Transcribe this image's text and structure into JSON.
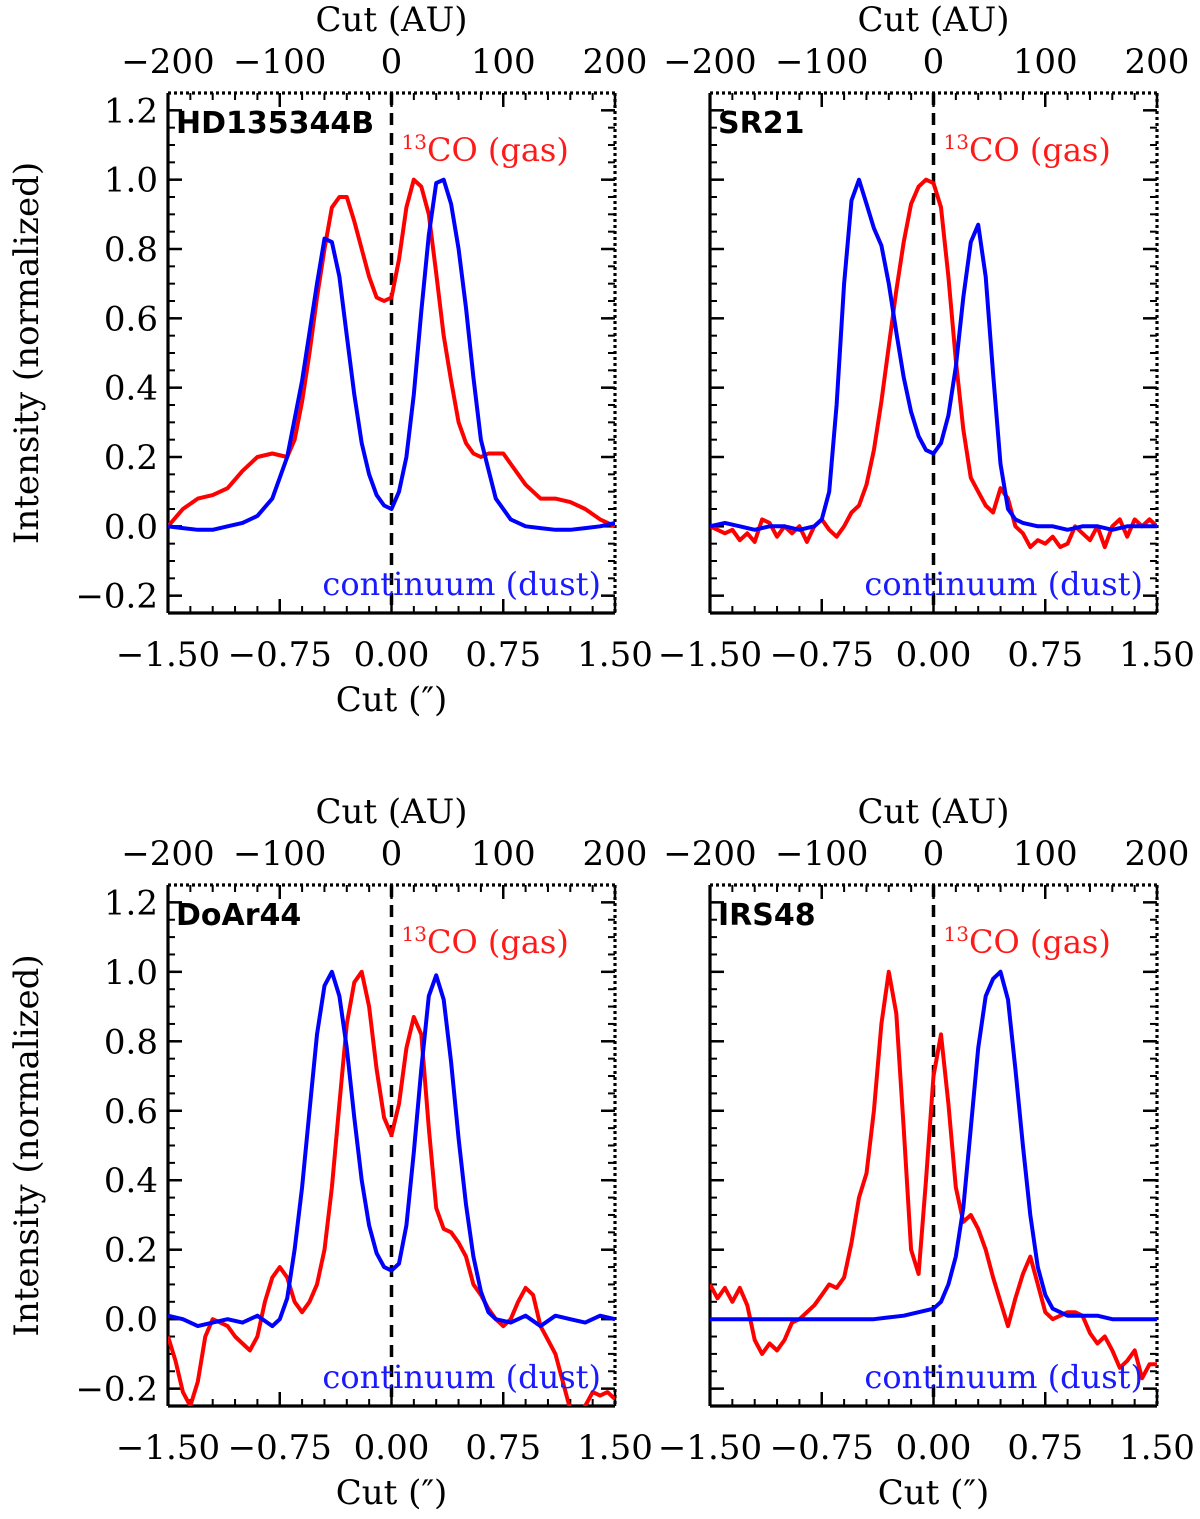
{
  "chart_data": [
    {
      "type": "line",
      "panel_label": "HD135344B",
      "xlabel": "Cut ('')",
      "ylabel": "Intensity (normalized)",
      "top_xlabel": "Cut (AU)",
      "xlim": [
        -1.5,
        1.5
      ],
      "ylim": [
        -0.25,
        1.25
      ],
      "top_xlim": [
        -200,
        200
      ],
      "xticks": [
        "-1.50",
        "-0.75",
        "0.00",
        "0.75",
        "1.50"
      ],
      "yticks": [
        "-0.2",
        "0.0",
        "0.2",
        "0.4",
        "0.6",
        "0.8",
        "1.0",
        "1.2"
      ],
      "top_xticks": [
        "-200",
        "-100",
        "0",
        "100",
        "200"
      ],
      "vline_x": 0,
      "gas_label": {
        "sup": "13",
        "text": "CO (gas)"
      },
      "dust_label": "continuum (dust)",
      "series": [
        {
          "name": "13CO (gas)",
          "color": "#ff0000",
          "x": [
            -1.5,
            -1.4,
            -1.3,
            -1.2,
            -1.1,
            -1.0,
            -0.9,
            -0.8,
            -0.7,
            -0.65,
            -0.6,
            -0.55,
            -0.5,
            -0.45,
            -0.4,
            -0.35,
            -0.3,
            -0.25,
            -0.2,
            -0.15,
            -0.1,
            -0.05,
            0.0,
            0.05,
            0.1,
            0.15,
            0.2,
            0.25,
            0.3,
            0.35,
            0.4,
            0.45,
            0.5,
            0.55,
            0.6,
            0.65,
            0.7,
            0.75,
            0.8,
            0.9,
            1.0,
            1.1,
            1.2,
            1.3,
            1.4,
            1.5
          ],
          "values": [
            0.0,
            0.05,
            0.08,
            0.09,
            0.11,
            0.16,
            0.2,
            0.21,
            0.2,
            0.25,
            0.36,
            0.5,
            0.66,
            0.8,
            0.92,
            0.95,
            0.95,
            0.88,
            0.8,
            0.72,
            0.66,
            0.65,
            0.66,
            0.77,
            0.92,
            1.0,
            0.98,
            0.9,
            0.73,
            0.55,
            0.42,
            0.3,
            0.24,
            0.21,
            0.2,
            0.21,
            0.21,
            0.21,
            0.18,
            0.12,
            0.08,
            0.08,
            0.07,
            0.05,
            0.02,
            0.0
          ]
        },
        {
          "name": "continuum (dust)",
          "color": "#0000ff",
          "x": [
            -1.5,
            -1.4,
            -1.3,
            -1.2,
            -1.1,
            -1.0,
            -0.9,
            -0.8,
            -0.7,
            -0.6,
            -0.5,
            -0.45,
            -0.4,
            -0.35,
            -0.3,
            -0.25,
            -0.2,
            -0.15,
            -0.1,
            -0.05,
            0.0,
            0.05,
            0.1,
            0.15,
            0.2,
            0.25,
            0.3,
            0.35,
            0.4,
            0.45,
            0.5,
            0.55,
            0.6,
            0.7,
            0.8,
            0.9,
            1.0,
            1.1,
            1.2,
            1.3,
            1.4,
            1.5
          ],
          "values": [
            0.0,
            -0.005,
            -0.01,
            -0.01,
            0.0,
            0.01,
            0.03,
            0.08,
            0.2,
            0.42,
            0.7,
            0.83,
            0.82,
            0.72,
            0.55,
            0.38,
            0.24,
            0.15,
            0.09,
            0.06,
            0.05,
            0.1,
            0.2,
            0.38,
            0.62,
            0.84,
            0.99,
            1.0,
            0.93,
            0.8,
            0.63,
            0.43,
            0.25,
            0.08,
            0.02,
            0.0,
            -0.005,
            -0.01,
            -0.01,
            -0.005,
            0.0,
            0.01
          ]
        }
      ]
    },
    {
      "type": "line",
      "panel_label": "SR21",
      "xlabel": "",
      "ylabel": "",
      "top_xlabel": "Cut (AU)",
      "xlim": [
        -1.5,
        1.5
      ],
      "ylim": [
        -0.25,
        1.25
      ],
      "top_xlim": [
        -200,
        200
      ],
      "xticks": [
        "-1.50",
        "-0.75",
        "0.00",
        "0.75",
        "1.50"
      ],
      "yticks": [],
      "top_xticks": [
        "-200",
        "-100",
        "0",
        "100",
        "200"
      ],
      "vline_x": 0,
      "gas_label": {
        "sup": "13",
        "text": "CO (gas)"
      },
      "dust_label": "continuum (dust)",
      "series": [
        {
          "name": "13CO (gas)",
          "color": "#ff0000",
          "x": [
            -1.5,
            -1.4,
            -1.35,
            -1.3,
            -1.25,
            -1.2,
            -1.15,
            -1.1,
            -1.05,
            -1.0,
            -0.95,
            -0.9,
            -0.85,
            -0.8,
            -0.75,
            -0.7,
            -0.65,
            -0.6,
            -0.55,
            -0.5,
            -0.45,
            -0.4,
            -0.35,
            -0.3,
            -0.25,
            -0.2,
            -0.15,
            -0.1,
            -0.05,
            0.0,
            0.05,
            0.1,
            0.15,
            0.2,
            0.25,
            0.3,
            0.35,
            0.4,
            0.45,
            0.5,
            0.55,
            0.6,
            0.65,
            0.7,
            0.75,
            0.8,
            0.85,
            0.9,
            0.95,
            1.0,
            1.05,
            1.1,
            1.15,
            1.2,
            1.25,
            1.3,
            1.35,
            1.4,
            1.45,
            1.5
          ],
          "values": [
            0.0,
            -0.02,
            -0.01,
            -0.04,
            -0.02,
            -0.045,
            0.02,
            0.01,
            -0.03,
            0.0,
            -0.02,
            0.0,
            -0.045,
            0.0,
            0.02,
            -0.01,
            -0.03,
            0.0,
            0.04,
            0.06,
            0.12,
            0.22,
            0.36,
            0.52,
            0.68,
            0.82,
            0.93,
            0.98,
            1.0,
            0.99,
            0.92,
            0.72,
            0.48,
            0.28,
            0.14,
            0.1,
            0.06,
            0.04,
            0.11,
            0.08,
            0.0,
            -0.02,
            -0.06,
            -0.04,
            -0.05,
            -0.03,
            -0.06,
            -0.05,
            0.0,
            -0.02,
            -0.04,
            0.0,
            -0.06,
            0.0,
            0.02,
            -0.03,
            0.02,
            0.0,
            0.02,
            0.0
          ]
        },
        {
          "name": "continuum (dust)",
          "color": "#0000ff",
          "x": [
            -1.5,
            -1.4,
            -1.3,
            -1.2,
            -1.1,
            -1.0,
            -0.9,
            -0.8,
            -0.75,
            -0.7,
            -0.65,
            -0.6,
            -0.55,
            -0.5,
            -0.45,
            -0.4,
            -0.35,
            -0.3,
            -0.25,
            -0.2,
            -0.15,
            -0.1,
            -0.05,
            0.0,
            0.05,
            0.1,
            0.15,
            0.2,
            0.25,
            0.3,
            0.35,
            0.4,
            0.45,
            0.5,
            0.55,
            0.6,
            0.7,
            0.8,
            0.9,
            1.0,
            1.1,
            1.2,
            1.3,
            1.4,
            1.5
          ],
          "values": [
            0.0,
            0.01,
            0.0,
            -0.01,
            0.0,
            0.0,
            -0.01,
            0.0,
            0.02,
            0.1,
            0.35,
            0.7,
            0.94,
            1.0,
            0.93,
            0.86,
            0.81,
            0.7,
            0.56,
            0.43,
            0.33,
            0.26,
            0.22,
            0.21,
            0.24,
            0.32,
            0.46,
            0.66,
            0.82,
            0.87,
            0.72,
            0.44,
            0.18,
            0.05,
            0.02,
            0.01,
            0.0,
            0.0,
            -0.01,
            0.0,
            0.0,
            -0.01,
            0.0,
            0.0,
            0.0
          ]
        }
      ]
    },
    {
      "type": "line",
      "panel_label": "DoAr44",
      "xlabel": "Cut ('')",
      "ylabel": "Intensity (normalized)",
      "top_xlabel": "Cut (AU)",
      "xlim": [
        -1.5,
        1.5
      ],
      "ylim": [
        -0.25,
        1.25
      ],
      "top_xlim": [
        -200,
        200
      ],
      "xticks": [
        "-1.50",
        "-0.75",
        "0.00",
        "0.75",
        "1.50"
      ],
      "yticks": [
        "-0.2",
        "0.0",
        "0.2",
        "0.4",
        "0.6",
        "0.8",
        "1.0",
        "1.2"
      ],
      "top_xticks": [
        "-200",
        "-100",
        "0",
        "100",
        "200"
      ],
      "vline_x": 0,
      "gas_label": {
        "sup": "13",
        "text": "CO (gas)"
      },
      "dust_label": "continuum (dust)",
      "series": [
        {
          "name": "13CO (gas)",
          "color": "#ff0000",
          "x": [
            -1.5,
            -1.45,
            -1.4,
            -1.35,
            -1.3,
            -1.25,
            -1.2,
            -1.15,
            -1.1,
            -1.05,
            -1.0,
            -0.95,
            -0.9,
            -0.85,
            -0.8,
            -0.75,
            -0.7,
            -0.65,
            -0.6,
            -0.55,
            -0.5,
            -0.45,
            -0.4,
            -0.35,
            -0.3,
            -0.25,
            -0.2,
            -0.15,
            -0.1,
            -0.05,
            0.0,
            0.05,
            0.1,
            0.15,
            0.2,
            0.25,
            0.3,
            0.35,
            0.4,
            0.45,
            0.5,
            0.55,
            0.6,
            0.65,
            0.7,
            0.75,
            0.8,
            0.85,
            0.9,
            0.95,
            1.0,
            1.05,
            1.1,
            1.15,
            1.2,
            1.25,
            1.3,
            1.35,
            1.4,
            1.45,
            1.5
          ],
          "values": [
            -0.05,
            -0.12,
            -0.21,
            -0.25,
            -0.18,
            -0.05,
            0.0,
            -0.01,
            -0.02,
            -0.05,
            -0.07,
            -0.09,
            -0.05,
            0.05,
            0.12,
            0.15,
            0.12,
            0.05,
            0.02,
            0.05,
            0.1,
            0.2,
            0.38,
            0.62,
            0.85,
            0.97,
            1.0,
            0.9,
            0.72,
            0.58,
            0.53,
            0.62,
            0.78,
            0.87,
            0.82,
            0.55,
            0.32,
            0.26,
            0.25,
            0.22,
            0.18,
            0.1,
            0.07,
            0.03,
            0.0,
            -0.02,
            0.0,
            0.05,
            0.09,
            0.07,
            -0.02,
            -0.06,
            -0.1,
            -0.18,
            -0.26,
            -0.29,
            -0.25,
            -0.21,
            -0.22,
            -0.21,
            -0.23
          ]
        },
        {
          "name": "continuum (dust)",
          "color": "#0000ff",
          "x": [
            -1.5,
            -1.4,
            -1.3,
            -1.2,
            -1.1,
            -1.0,
            -0.9,
            -0.8,
            -0.75,
            -0.7,
            -0.65,
            -0.6,
            -0.55,
            -0.5,
            -0.45,
            -0.4,
            -0.35,
            -0.3,
            -0.25,
            -0.2,
            -0.15,
            -0.1,
            -0.05,
            0.0,
            0.05,
            0.1,
            0.15,
            0.2,
            0.25,
            0.3,
            0.35,
            0.4,
            0.45,
            0.5,
            0.55,
            0.6,
            0.65,
            0.7,
            0.8,
            0.9,
            1.0,
            1.1,
            1.2,
            1.3,
            1.4,
            1.5
          ],
          "values": [
            0.01,
            0.0,
            -0.02,
            -0.01,
            0.0,
            -0.01,
            0.01,
            -0.02,
            0.0,
            0.06,
            0.2,
            0.38,
            0.6,
            0.82,
            0.96,
            1.0,
            0.93,
            0.78,
            0.58,
            0.4,
            0.27,
            0.19,
            0.15,
            0.14,
            0.16,
            0.27,
            0.48,
            0.72,
            0.93,
            0.99,
            0.92,
            0.74,
            0.52,
            0.33,
            0.18,
            0.08,
            0.02,
            0.0,
            -0.01,
            0.01,
            -0.02,
            0.01,
            0.0,
            -0.01,
            0.01,
            0.0
          ]
        }
      ]
    },
    {
      "type": "line",
      "panel_label": "IRS48",
      "xlabel": "Cut ('')",
      "ylabel": "",
      "top_xlabel": "Cut (AU)",
      "xlim": [
        -1.5,
        1.5
      ],
      "ylim": [
        -0.25,
        1.25
      ],
      "top_xlim": [
        -200,
        200
      ],
      "xticks": [
        "-1.50",
        "-0.75",
        "0.00",
        "0.75",
        "1.50"
      ],
      "yticks": [],
      "top_xticks": [
        "-200",
        "-100",
        "0",
        "100",
        "200"
      ],
      "vline_x": 0,
      "gas_label": {
        "sup": "13",
        "text": "CO (gas)"
      },
      "dust_label": "continuum (dust)",
      "series": [
        {
          "name": "13CO (gas)",
          "color": "#ff0000",
          "x": [
            -1.5,
            -1.45,
            -1.4,
            -1.35,
            -1.3,
            -1.25,
            -1.2,
            -1.15,
            -1.1,
            -1.05,
            -1.0,
            -0.95,
            -0.9,
            -0.85,
            -0.8,
            -0.75,
            -0.7,
            -0.65,
            -0.6,
            -0.55,
            -0.5,
            -0.45,
            -0.4,
            -0.35,
            -0.3,
            -0.25,
            -0.2,
            -0.15,
            -0.1,
            -0.05,
            0.0,
            0.05,
            0.1,
            0.15,
            0.2,
            0.25,
            0.3,
            0.35,
            0.4,
            0.45,
            0.5,
            0.55,
            0.6,
            0.65,
            0.7,
            0.75,
            0.8,
            0.85,
            0.9,
            0.95,
            1.0,
            1.05,
            1.1,
            1.15,
            1.2,
            1.25,
            1.3,
            1.35,
            1.4,
            1.45,
            1.5
          ],
          "values": [
            0.1,
            0.06,
            0.09,
            0.05,
            0.09,
            0.04,
            -0.06,
            -0.1,
            -0.07,
            -0.09,
            -0.06,
            -0.01,
            0.0,
            0.02,
            0.04,
            0.07,
            0.1,
            0.09,
            0.12,
            0.22,
            0.35,
            0.42,
            0.6,
            0.85,
            1.0,
            0.88,
            0.55,
            0.2,
            0.13,
            0.4,
            0.7,
            0.82,
            0.62,
            0.38,
            0.28,
            0.3,
            0.26,
            0.2,
            0.12,
            0.05,
            -0.02,
            0.06,
            0.13,
            0.18,
            0.1,
            0.02,
            0.0,
            0.01,
            0.02,
            0.02,
            0.01,
            -0.04,
            -0.07,
            -0.05,
            -0.09,
            -0.14,
            -0.12,
            -0.09,
            -0.17,
            -0.13,
            -0.13
          ]
        },
        {
          "name": "continuum (dust)",
          "color": "#0000ff",
          "x": [
            -1.5,
            -1.3,
            -1.1,
            -0.9,
            -0.7,
            -0.5,
            -0.4,
            -0.3,
            -0.2,
            -0.1,
            0.0,
            0.05,
            0.1,
            0.15,
            0.2,
            0.25,
            0.3,
            0.35,
            0.4,
            0.45,
            0.5,
            0.55,
            0.6,
            0.65,
            0.7,
            0.75,
            0.8,
            0.85,
            0.9,
            1.0,
            1.1,
            1.2,
            1.3,
            1.4,
            1.5
          ],
          "values": [
            0.0,
            0.0,
            0.0,
            0.0,
            0.0,
            0.0,
            0.0,
            0.005,
            0.01,
            0.02,
            0.03,
            0.05,
            0.1,
            0.18,
            0.32,
            0.55,
            0.78,
            0.93,
            0.98,
            1.0,
            0.92,
            0.72,
            0.5,
            0.3,
            0.15,
            0.07,
            0.03,
            0.02,
            0.01,
            0.01,
            0.01,
            0.0,
            0.0,
            0.0,
            0.0
          ]
        }
      ]
    }
  ]
}
